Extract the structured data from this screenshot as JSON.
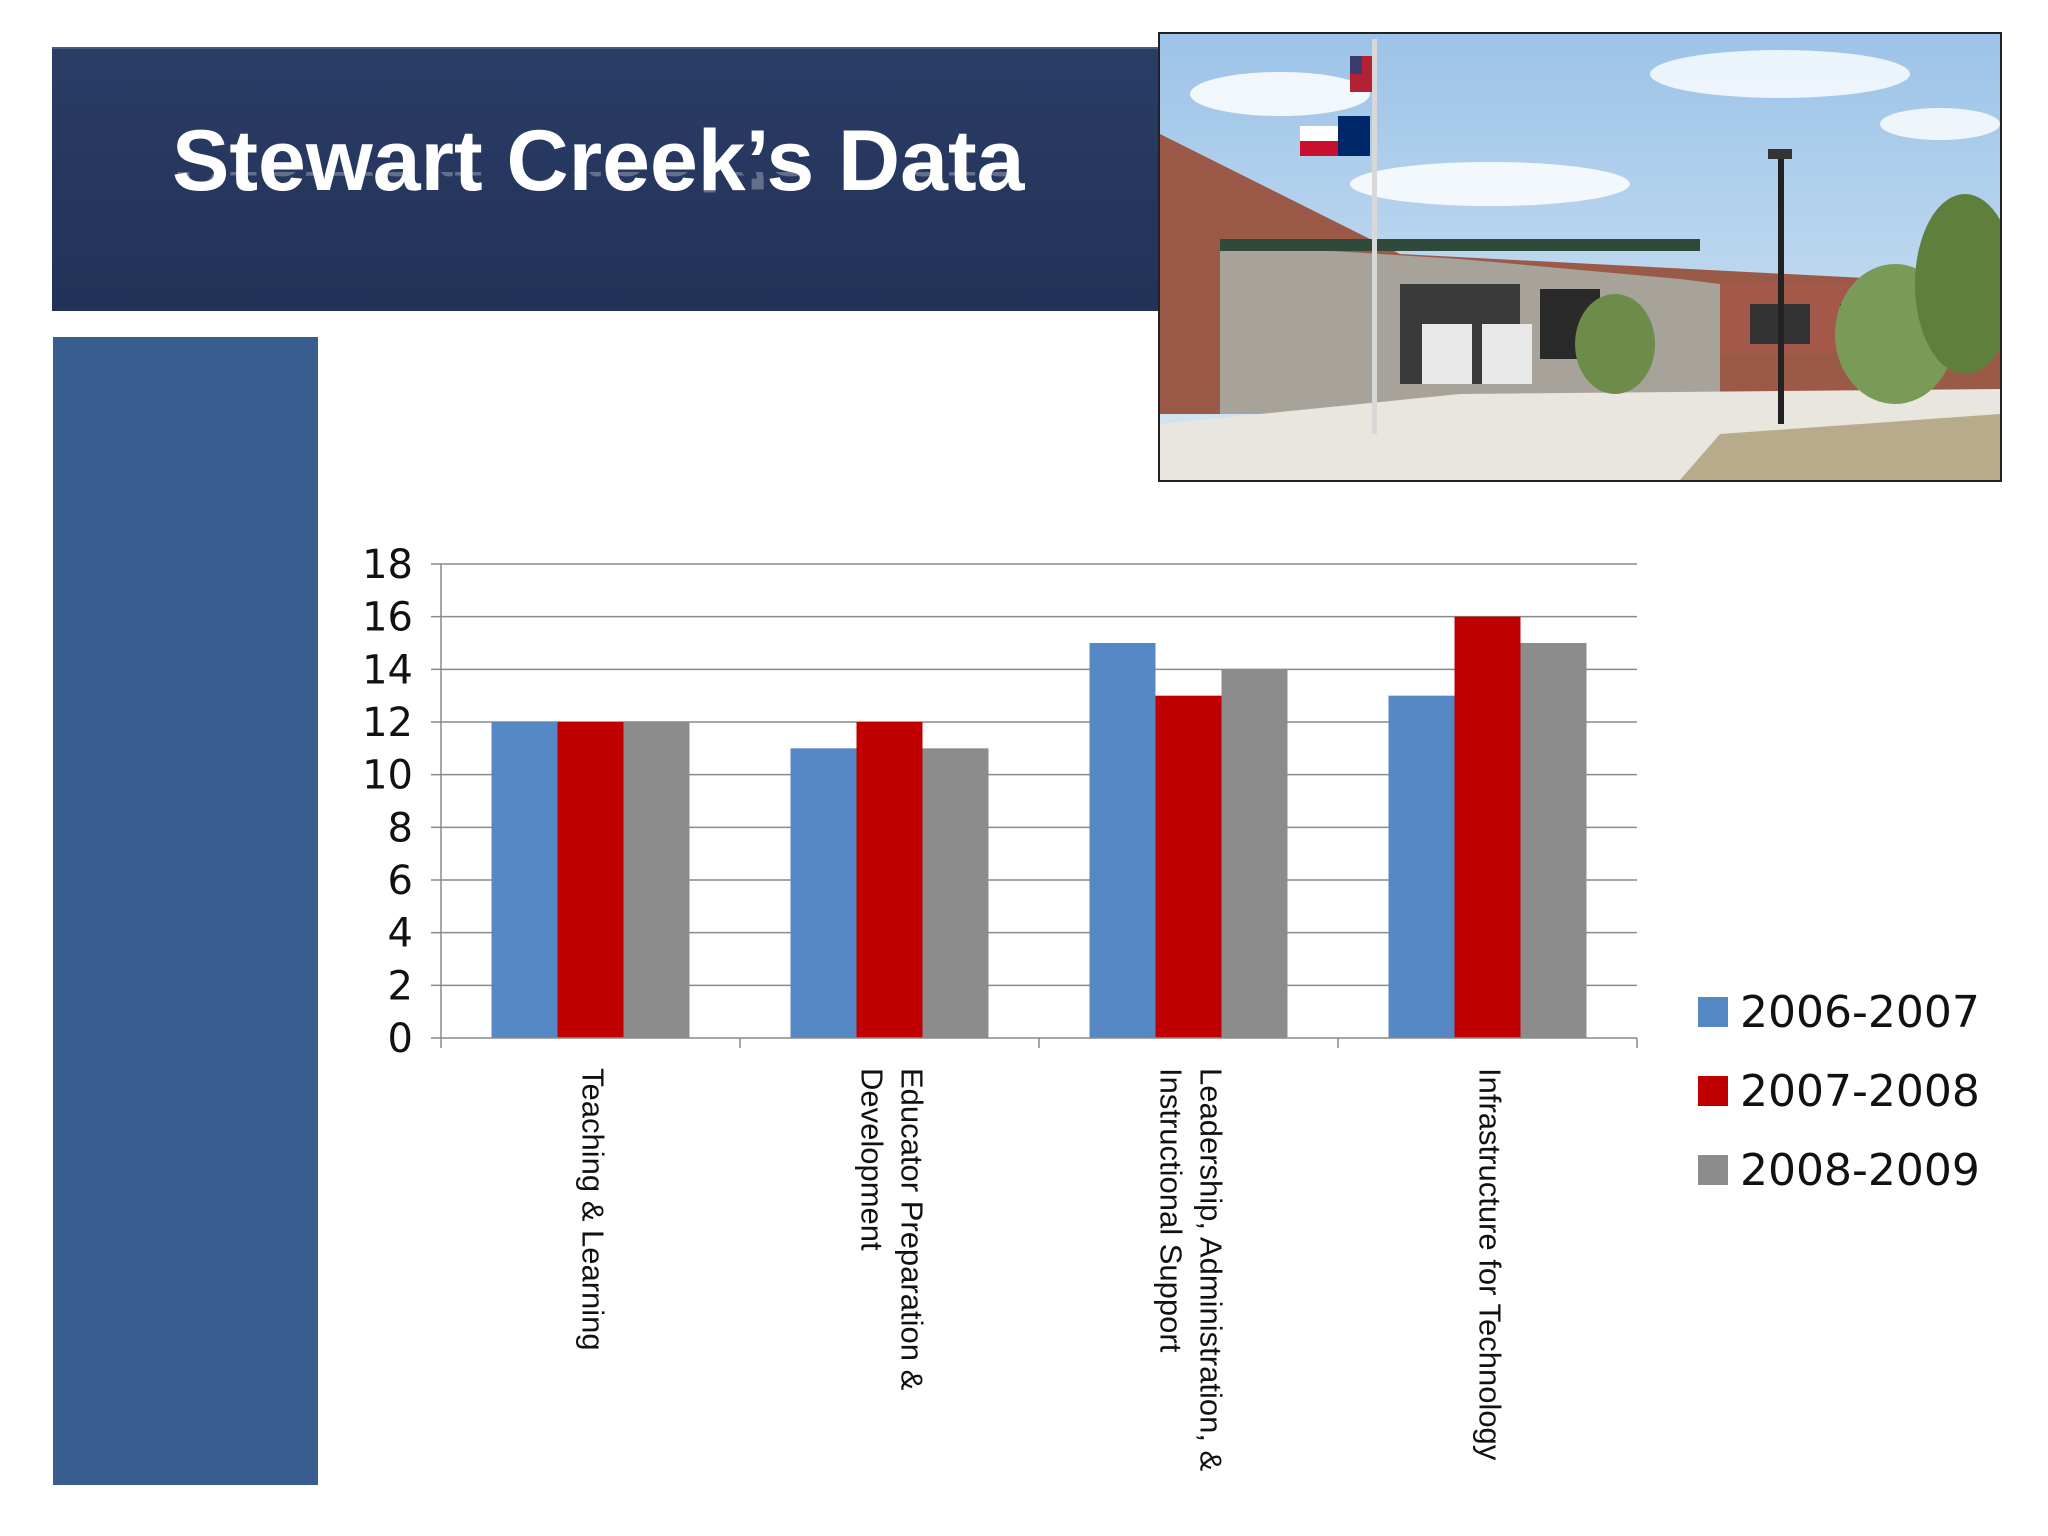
{
  "slide": {
    "title": "Stewart Creek’s Data",
    "photo_alt": "school building with flags"
  },
  "colors": {
    "title_bar": "#24365c",
    "side_bar": "#385d8f",
    "series": [
      "#5588c4",
      "#c00000",
      "#8c8c8c"
    ]
  },
  "chart_data": {
    "type": "bar",
    "categories": [
      [
        "Teaching & Learning"
      ],
      [
        "Educator Preparation &",
        "Development"
      ],
      [
        "Leadership, Administration, &",
        "Instructional Support"
      ],
      [
        "Infrastructure for Technology"
      ]
    ],
    "series": [
      {
        "name": "2006-2007",
        "values": [
          12,
          11,
          15,
          13
        ]
      },
      {
        "name": "2007-2008",
        "values": [
          12,
          12,
          13,
          16
        ]
      },
      {
        "name": "2008-2009",
        "values": [
          12,
          11,
          14,
          15
        ]
      }
    ],
    "ylim": [
      0,
      18
    ],
    "yticks": [
      0,
      2,
      4,
      6,
      8,
      10,
      12,
      14,
      16,
      18
    ],
    "grid": true,
    "legend": "right"
  }
}
